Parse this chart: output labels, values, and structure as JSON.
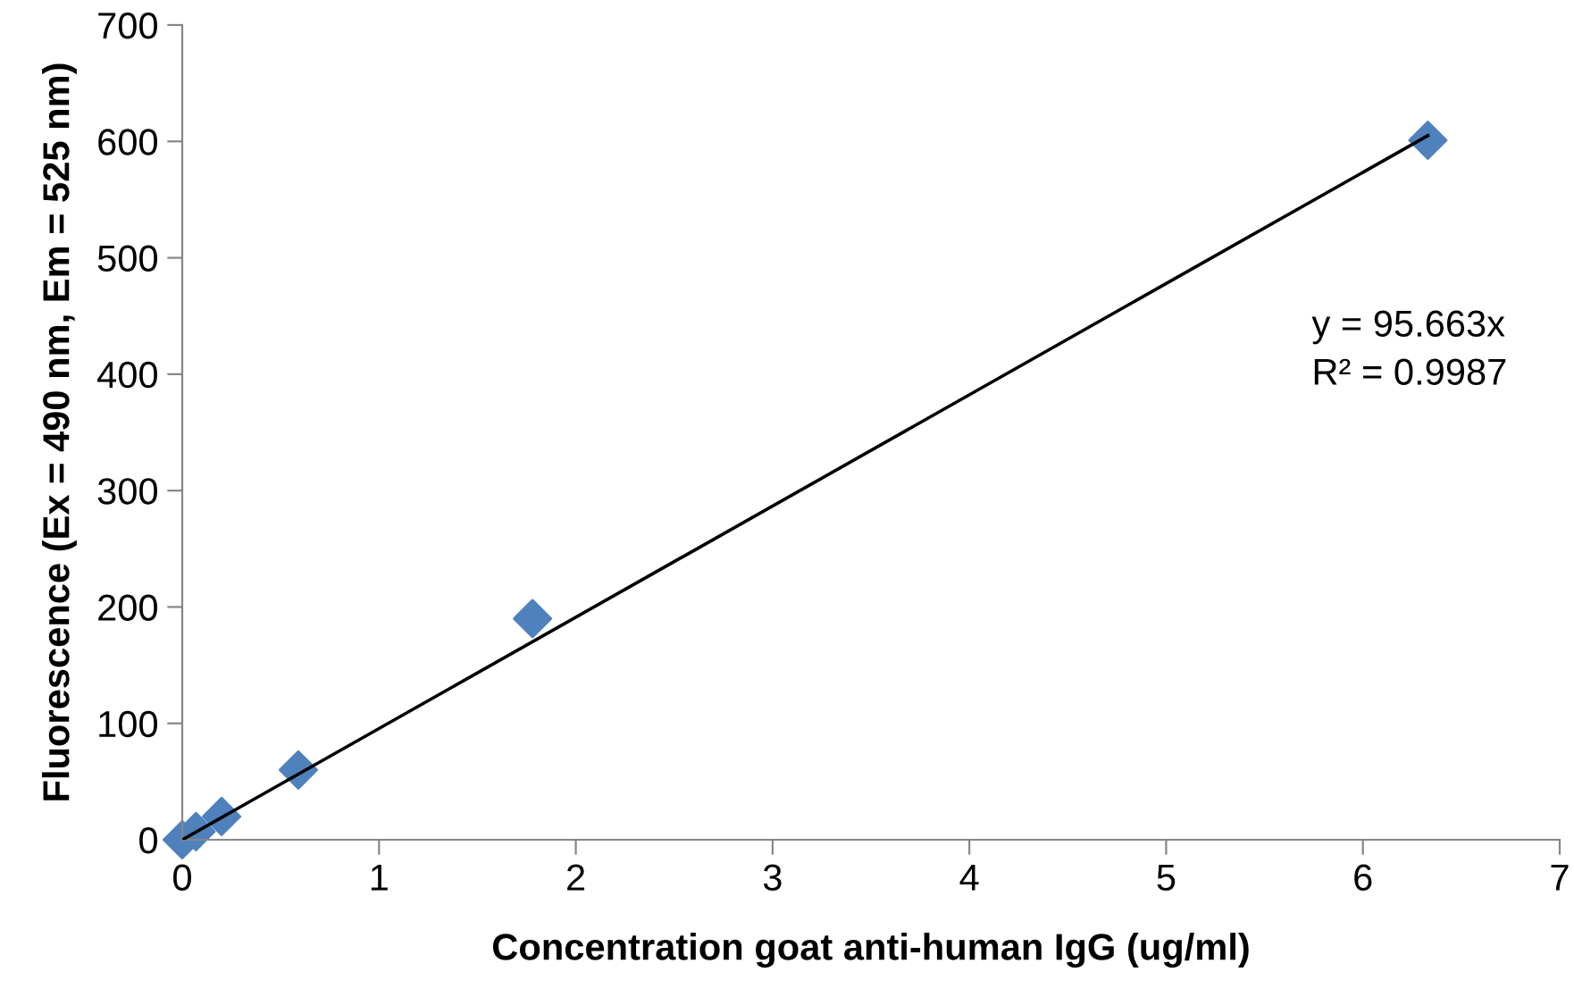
{
  "chart_data": {
    "type": "scatter",
    "xlabel": "Concentration goat anti-human IgG (ug/ml)",
    "ylabel": "Fluorescence (Ex = 490 nm, Em = 525 nm)",
    "series": [
      {
        "color": "#4f81bd",
        "marker": "diamond",
        "x": [
          0,
          0.07,
          0.2,
          0.59,
          1.78,
          6.33
        ],
        "values": [
          0,
          7,
          20,
          60,
          190,
          601
        ]
      },
      {
        "type": "line",
        "color": "#000000",
        "marker": "none",
        "line_style": "solid",
        "x": [
          0,
          6.33
        ],
        "values": [
          0,
          605
        ]
      }
    ],
    "annotations": [
      "y = 95.663x\nR² = 0.9987"
    ],
    "xlim": [
      0,
      7
    ],
    "xticks": [
      0,
      1,
      2,
      3,
      4,
      5,
      6,
      7
    ],
    "ylim": [
      0,
      700
    ],
    "yticks": [
      0,
      100,
      200,
      300,
      400,
      500,
      600,
      700
    ],
    "grid": false,
    "legend": false
  }
}
